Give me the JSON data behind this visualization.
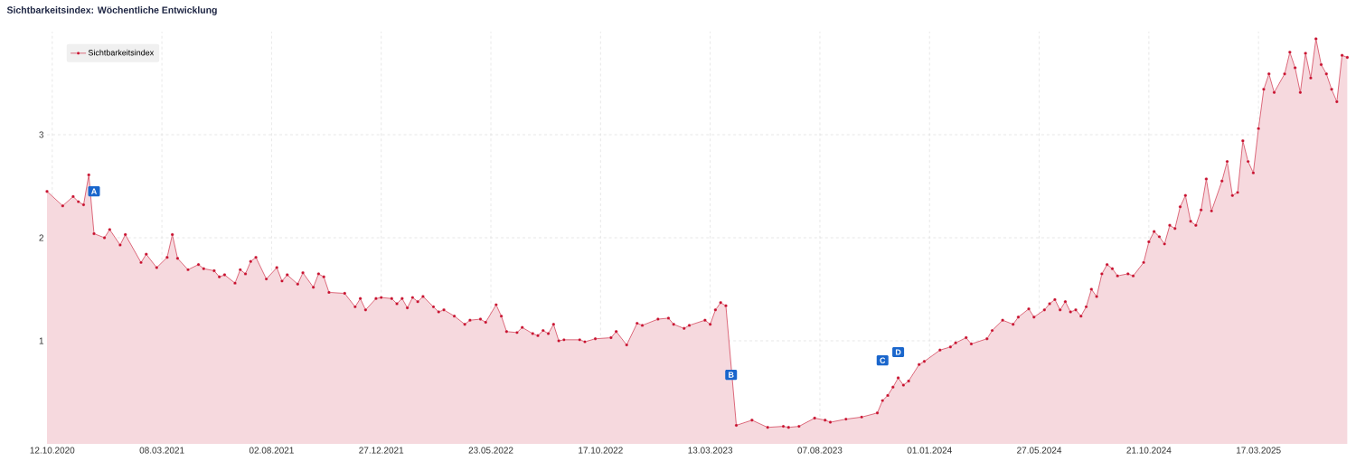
{
  "chart_data": {
    "type": "area",
    "title": "Sichtbarkeitsindex: Wöchentliche Entwicklung",
    "x": [
      "2020-10-05",
      "2020-10-26",
      "2020-11-09",
      "2020-11-16",
      "2020-11-23",
      "2020-11-30",
      "2020-12-07",
      "2020-12-21",
      "2020-12-28",
      "2021-01-11",
      "2021-01-18",
      "2021-02-08",
      "2021-02-15",
      "2021-03-01",
      "2021-03-15",
      "2021-03-22",
      "2021-03-29",
      "2021-04-12",
      "2021-04-26",
      "2021-05-03",
      "2021-05-17",
      "2021-05-24",
      "2021-05-31",
      "2021-06-14",
      "2021-06-21",
      "2021-06-28",
      "2021-07-05",
      "2021-07-12",
      "2021-07-26",
      "2021-08-09",
      "2021-08-16",
      "2021-08-23",
      "2021-09-06",
      "2021-09-13",
      "2021-09-27",
      "2021-10-04",
      "2021-10-11",
      "2021-10-18",
      "2021-11-08",
      "2021-11-22",
      "2021-11-29",
      "2021-12-06",
      "2021-12-20",
      "2021-12-27",
      "2022-01-10",
      "2022-01-17",
      "2022-01-24",
      "2022-01-31",
      "2022-02-07",
      "2022-02-14",
      "2022-02-21",
      "2022-03-07",
      "2022-03-14",
      "2022-03-21",
      "2022-04-04",
      "2022-04-18",
      "2022-04-25",
      "2022-05-09",
      "2022-05-16",
      "2022-05-30",
      "2022-06-06",
      "2022-06-13",
      "2022-06-27",
      "2022-07-04",
      "2022-07-18",
      "2022-07-25",
      "2022-08-01",
      "2022-08-08",
      "2022-08-15",
      "2022-08-22",
      "2022-08-29",
      "2022-09-19",
      "2022-09-26",
      "2022-10-10",
      "2022-10-31",
      "2022-11-07",
      "2022-11-21",
      "2022-12-05",
      "2022-12-12",
      "2023-01-02",
      "2023-01-16",
      "2023-01-23",
      "2023-02-06",
      "2023-02-13",
      "2023-03-06",
      "2023-03-13",
      "2023-03-20",
      "2023-03-27",
      "2023-04-03",
      "2023-04-17",
      "2023-05-08",
      "2023-05-29",
      "2023-06-19",
      "2023-06-26",
      "2023-07-10",
      "2023-07-31",
      "2023-08-14",
      "2023-08-21",
      "2023-09-11",
      "2023-10-02",
      "2023-10-23",
      "2023-10-30",
      "2023-11-06",
      "2023-11-13",
      "2023-11-20",
      "2023-11-27",
      "2023-12-04",
      "2023-12-18",
      "2023-12-25",
      "2024-01-15",
      "2024-01-29",
      "2024-02-05",
      "2024-02-19",
      "2024-02-26",
      "2024-03-18",
      "2024-03-25",
      "2024-04-08",
      "2024-04-22",
      "2024-04-29",
      "2024-05-13",
      "2024-05-20",
      "2024-06-03",
      "2024-06-10",
      "2024-06-17",
      "2024-06-24",
      "2024-07-01",
      "2024-07-08",
      "2024-07-15",
      "2024-07-22",
      "2024-07-29",
      "2024-08-05",
      "2024-08-12",
      "2024-08-19",
      "2024-08-26",
      "2024-09-02",
      "2024-09-09",
      "2024-09-23",
      "2024-09-30",
      "2024-10-14",
      "2024-10-21",
      "2024-10-28",
      "2024-11-04",
      "2024-11-11",
      "2024-11-18",
      "2024-11-25",
      "2024-12-02",
      "2024-12-09",
      "2024-12-16",
      "2024-12-23",
      "2024-12-30",
      "2025-01-06",
      "2025-01-13",
      "2025-01-27",
      "2025-02-03",
      "2025-02-10",
      "2025-02-17",
      "2025-02-24",
      "2025-03-03",
      "2025-03-10",
      "2025-03-17",
      "2025-03-24",
      "2025-03-31",
      "2025-04-07",
      "2025-04-21",
      "2025-04-28",
      "2025-05-05",
      "2025-05-12",
      "2025-05-19",
      "2025-05-26",
      "2025-06-02",
      "2025-06-09",
      "2025-06-16",
      "2025-06-23",
      "2025-06-30",
      "2025-07-07",
      "2025-07-14"
    ],
    "series": [
      {
        "name": "Sichtbarkeitsindex",
        "color": "#c8102e",
        "values": [
          2.45,
          2.31,
          2.4,
          2.35,
          2.32,
          2.61,
          2.04,
          2.0,
          2.08,
          1.93,
          2.03,
          1.76,
          1.84,
          1.71,
          1.81,
          2.03,
          1.8,
          1.69,
          1.74,
          1.7,
          1.68,
          1.62,
          1.64,
          1.56,
          1.69,
          1.65,
          1.77,
          1.81,
          1.6,
          1.71,
          1.58,
          1.64,
          1.55,
          1.66,
          1.52,
          1.65,
          1.62,
          1.47,
          1.46,
          1.33,
          1.41,
          1.3,
          1.41,
          1.42,
          1.41,
          1.36,
          1.41,
          1.32,
          1.42,
          1.38,
          1.43,
          1.33,
          1.28,
          1.3,
          1.24,
          1.16,
          1.2,
          1.21,
          1.18,
          1.35,
          1.24,
          1.09,
          1.08,
          1.13,
          1.07,
          1.05,
          1.1,
          1.07,
          1.16,
          1.0,
          1.01,
          1.01,
          0.99,
          1.02,
          1.03,
          1.09,
          0.96,
          1.17,
          1.15,
          1.21,
          1.22,
          1.16,
          1.12,
          1.15,
          1.2,
          1.16,
          1.3,
          1.37,
          1.34,
          0.18,
          0.23,
          0.16,
          0.17,
          0.16,
          0.17,
          0.25,
          0.23,
          0.21,
          0.24,
          0.26,
          0.3,
          0.42,
          0.47,
          0.55,
          0.64,
          0.57,
          0.61,
          0.77,
          0.8,
          0.91,
          0.94,
          0.98,
          1.03,
          0.97,
          1.02,
          1.1,
          1.2,
          1.16,
          1.23,
          1.31,
          1.23,
          1.3,
          1.36,
          1.4,
          1.3,
          1.38,
          1.28,
          1.3,
          1.24,
          1.33,
          1.5,
          1.43,
          1.65,
          1.74,
          1.7,
          1.63,
          1.65,
          1.63,
          1.76,
          1.96,
          2.06,
          2.01,
          1.94,
          2.12,
          2.09,
          2.3,
          2.41,
          2.16,
          2.12,
          2.27,
          2.57,
          2.26,
          2.55,
          2.74,
          2.41,
          2.44,
          2.94,
          2.74,
          2.63,
          3.06,
          3.44,
          3.59,
          3.41,
          3.59,
          3.8,
          3.65,
          3.41,
          3.79,
          3.55,
          3.93,
          3.68,
          3.59,
          3.44,
          3.32,
          3.77,
          3.75
        ]
      }
    ],
    "xlim": [
      "2020-10-05",
      "2025-07-16"
    ],
    "xticks": [
      {
        "value": "2020-10-12",
        "label": "12.10.2020"
      },
      {
        "value": "2021-03-08",
        "label": "08.03.2021"
      },
      {
        "value": "2021-08-02",
        "label": "02.08.2021"
      },
      {
        "value": "2021-12-27",
        "label": "27.12.2021"
      },
      {
        "value": "2022-05-23",
        "label": "23.05.2022"
      },
      {
        "value": "2022-10-17",
        "label": "17.10.2022"
      },
      {
        "value": "2023-03-13",
        "label": "13.03.2023"
      },
      {
        "value": "2023-08-07",
        "label": "07.08.2023"
      },
      {
        "value": "2024-01-01",
        "label": "01.01.2024"
      },
      {
        "value": "2024-05-27",
        "label": "27.05.2024"
      },
      {
        "value": "2024-10-21",
        "label": "21.10.2024"
      },
      {
        "value": "2025-03-17",
        "label": "17.03.2025"
      }
    ],
    "ylim": [
      0,
      4
    ],
    "yticks": [
      1,
      2,
      3
    ],
    "grid": true,
    "legend": "top left",
    "marker": "circle",
    "annotations": [
      {
        "text": "A",
        "x": "2020-12-07",
        "y": 2.45
      },
      {
        "text": "B",
        "x": "2023-04-10",
        "y": 0.67
      },
      {
        "text": "C",
        "x": "2023-10-30",
        "y": 0.81
      },
      {
        "text": "D",
        "x": "2023-11-20",
        "y": 0.89
      }
    ]
  }
}
